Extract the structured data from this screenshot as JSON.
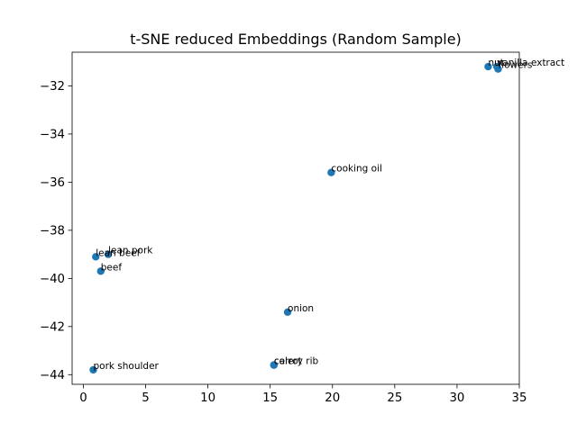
{
  "chart_data": {
    "type": "scatter",
    "title": "t-SNE reduced Embeddings (Random Sample)",
    "xlabel": "",
    "ylabel": "",
    "xlim": [
      -0.9,
      35.0
    ],
    "ylim": [
      -44.4,
      -30.6
    ],
    "xticks": [
      0,
      5,
      10,
      15,
      20,
      25,
      30,
      35
    ],
    "yticks": [
      -44,
      -42,
      -40,
      -38,
      -36,
      -34,
      -32
    ],
    "grid": false,
    "marker_color": "#1f77b4",
    "points": [
      {
        "label": "nut",
        "x": 32.5,
        "y": -31.2
      },
      {
        "label": "vanilla extract",
        "x": 33.2,
        "y": -31.2
      },
      {
        "label": "flowers",
        "x": 33.3,
        "y": -31.3
      },
      {
        "label": "cooking oil",
        "x": 19.9,
        "y": -35.6
      },
      {
        "label": "lean pork",
        "x": 2.0,
        "y": -39.0
      },
      {
        "label": "lean beef",
        "x": 1.0,
        "y": -39.1
      },
      {
        "label": "beef",
        "x": 1.4,
        "y": -39.7
      },
      {
        "label": "onion",
        "x": 16.4,
        "y": -41.4
      },
      {
        "label": "carrot",
        "x": 15.3,
        "y": -43.6
      },
      {
        "label": "celery rib",
        "x": 15.3,
        "y": -43.6
      },
      {
        "label": "pork shoulder",
        "x": 0.8,
        "y": -43.8
      }
    ]
  }
}
